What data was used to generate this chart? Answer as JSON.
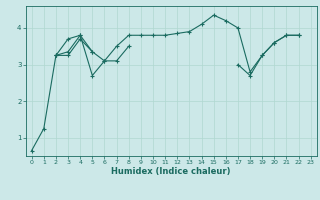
{
  "title": "",
  "xlabel": "Humidex (Indice chaleur)",
  "bg_color": "#cce8e8",
  "line_color": "#1a6b60",
  "grid_color": "#b0d8d0",
  "xlim": [
    -0.5,
    23.5
  ],
  "ylim": [
    0.5,
    4.6
  ],
  "yticks": [
    1,
    2,
    3,
    4
  ],
  "xticks": [
    0,
    1,
    2,
    3,
    4,
    5,
    6,
    7,
    8,
    9,
    10,
    11,
    12,
    13,
    14,
    15,
    16,
    17,
    18,
    19,
    20,
    21,
    22,
    23
  ],
  "series_x": [
    [
      0,
      1,
      2,
      3,
      4,
      5,
      6,
      7,
      8,
      9,
      10,
      11,
      12,
      13,
      14,
      15,
      16,
      17,
      18,
      19,
      20,
      21,
      22
    ],
    [
      2,
      3,
      4,
      5
    ],
    [
      2,
      3,
      4,
      5,
      6,
      7,
      8
    ],
    [
      17,
      18,
      19,
      20,
      21,
      22
    ]
  ],
  "series_y": [
    [
      0.65,
      1.25,
      3.25,
      3.7,
      3.8,
      2.7,
      3.1,
      3.5,
      3.8,
      3.8,
      3.8,
      3.8,
      3.85,
      3.9,
      4.1,
      4.35,
      4.2,
      4.0,
      2.8,
      3.25,
      3.6,
      3.8,
      3.8
    ],
    [
      3.25,
      3.25,
      3.7,
      3.35
    ],
    [
      3.25,
      3.35,
      3.8,
      3.35,
      3.1,
      3.1,
      3.5
    ],
    [
      3.0,
      2.7,
      3.25,
      3.6,
      3.8,
      3.8
    ]
  ]
}
